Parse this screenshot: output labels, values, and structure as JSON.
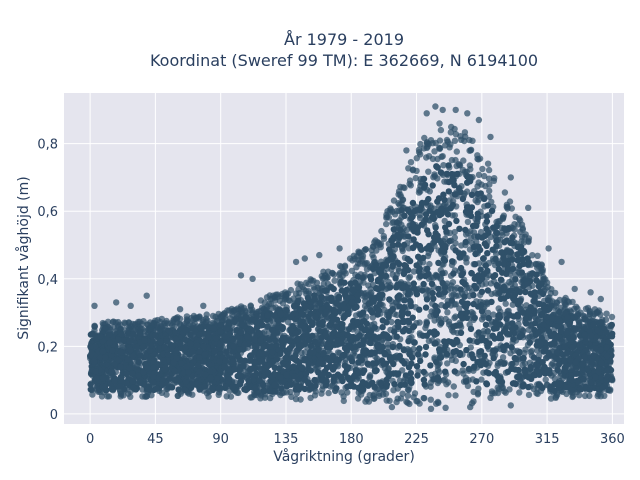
{
  "colors": {
    "plot_bg": "#E5E5EE",
    "grid": "#ffffff",
    "marker": "#2F5069",
    "text": "#2a3f5f"
  },
  "chart_data": {
    "type": "scatter",
    "title_line1": "År 1979 - 2019",
    "title_line2": "Koordinat (Sweref 99 TM): E 362669, N 6194100",
    "xlabel": "Vågriktning (grader)",
    "ylabel": "Signifikant våghöjd (m)",
    "xlim": [
      -18,
      368
    ],
    "ylim": [
      -0.03,
      0.95
    ],
    "xticks": [
      0,
      45,
      90,
      135,
      180,
      225,
      270,
      315,
      360
    ],
    "xtick_labels": [
      "0",
      "45",
      "90",
      "135",
      "180",
      "225",
      "270",
      "315",
      "360"
    ],
    "yticks": [
      0,
      0.2,
      0.4,
      0.6,
      0.8
    ],
    "ytick_labels": [
      "0",
      "0,2",
      "0,4",
      "0,6",
      "0,8"
    ],
    "grid": true,
    "envelope": {
      "direction_deg": [
        0,
        45,
        90,
        130,
        165,
        195,
        215,
        235,
        255,
        275,
        300,
        320,
        340,
        360
      ],
      "upper_m": [
        0.27,
        0.28,
        0.3,
        0.36,
        0.43,
        0.5,
        0.7,
        0.86,
        0.86,
        0.74,
        0.55,
        0.36,
        0.32,
        0.3
      ],
      "lower_m": [
        0.05,
        0.05,
        0.05,
        0.04,
        0.04,
        0.03,
        0.03,
        0.02,
        0.03,
        0.03,
        0.04,
        0.04,
        0.05,
        0.05
      ]
    },
    "outliers": [
      [
        3,
        0.32
      ],
      [
        18,
        0.33
      ],
      [
        28,
        0.32
      ],
      [
        39,
        0.35
      ],
      [
        62,
        0.31
      ],
      [
        78,
        0.32
      ],
      [
        104,
        0.41
      ],
      [
        112,
        0.4
      ],
      [
        142,
        0.45
      ],
      [
        148,
        0.46
      ],
      [
        158,
        0.47
      ],
      [
        172,
        0.49
      ],
      [
        185,
        0.48
      ],
      [
        205,
        0.6
      ],
      [
        218,
        0.78
      ],
      [
        232,
        0.89
      ],
      [
        238,
        0.91
      ],
      [
        243,
        0.9
      ],
      [
        252,
        0.9
      ],
      [
        260,
        0.89
      ],
      [
        268,
        0.87
      ],
      [
        276,
        0.82
      ],
      [
        290,
        0.7
      ],
      [
        302,
        0.61
      ],
      [
        316,
        0.49
      ],
      [
        325,
        0.45
      ],
      [
        334,
        0.37
      ],
      [
        345,
        0.36
      ],
      [
        352,
        0.34
      ],
      [
        300,
        0.4
      ],
      [
        235,
        0.015
      ],
      [
        245,
        0.018
      ],
      [
        262,
        0.02
      ],
      [
        208,
        0.02
      ],
      [
        290,
        0.025
      ]
    ]
  }
}
